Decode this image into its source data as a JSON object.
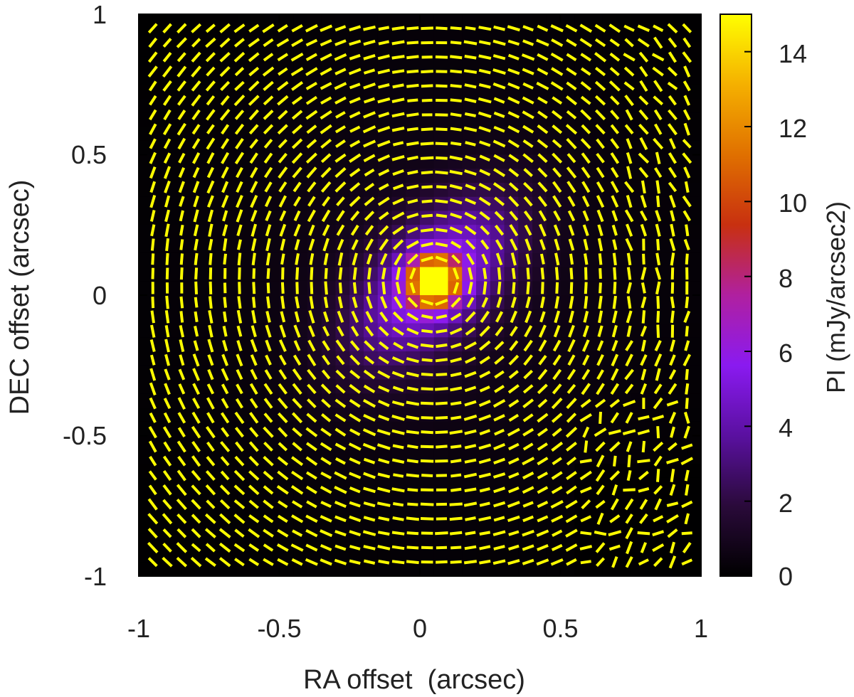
{
  "chart_data": {
    "type": "heatmap",
    "title": "",
    "xlabel": "RA offset  (arcsec)",
    "ylabel": "DEC offset (arcsec)",
    "colorbar_label": "PI (mJy/arcsec2)",
    "xlim": [
      -1,
      1
    ],
    "ylim": [
      -1,
      1
    ],
    "colorbar_range": [
      0,
      15
    ],
    "x_ticks": [
      "-1",
      "-0.5",
      "0",
      "0.5",
      "1"
    ],
    "y_ticks": [
      "1",
      "0.5",
      "0",
      "-0.5",
      "-1"
    ],
    "colorbar_ticks": [
      "14",
      "12",
      "10",
      "8",
      "6",
      "4",
      "2",
      "0"
    ],
    "colormap": [
      "#000000",
      "#2a0a3a",
      "#5a10a0",
      "#8a1af0",
      "#b020a0",
      "#c83010",
      "#e07000",
      "#f5b000",
      "#ffff00"
    ],
    "peak": {
      "x": 0.05,
      "y": 0.05,
      "value": 15
    },
    "vector_color": "#ffff00",
    "grid": false,
    "pattern": "polarization vectors tangential (azimuthal) around central peak, disordered in lower-right region"
  }
}
